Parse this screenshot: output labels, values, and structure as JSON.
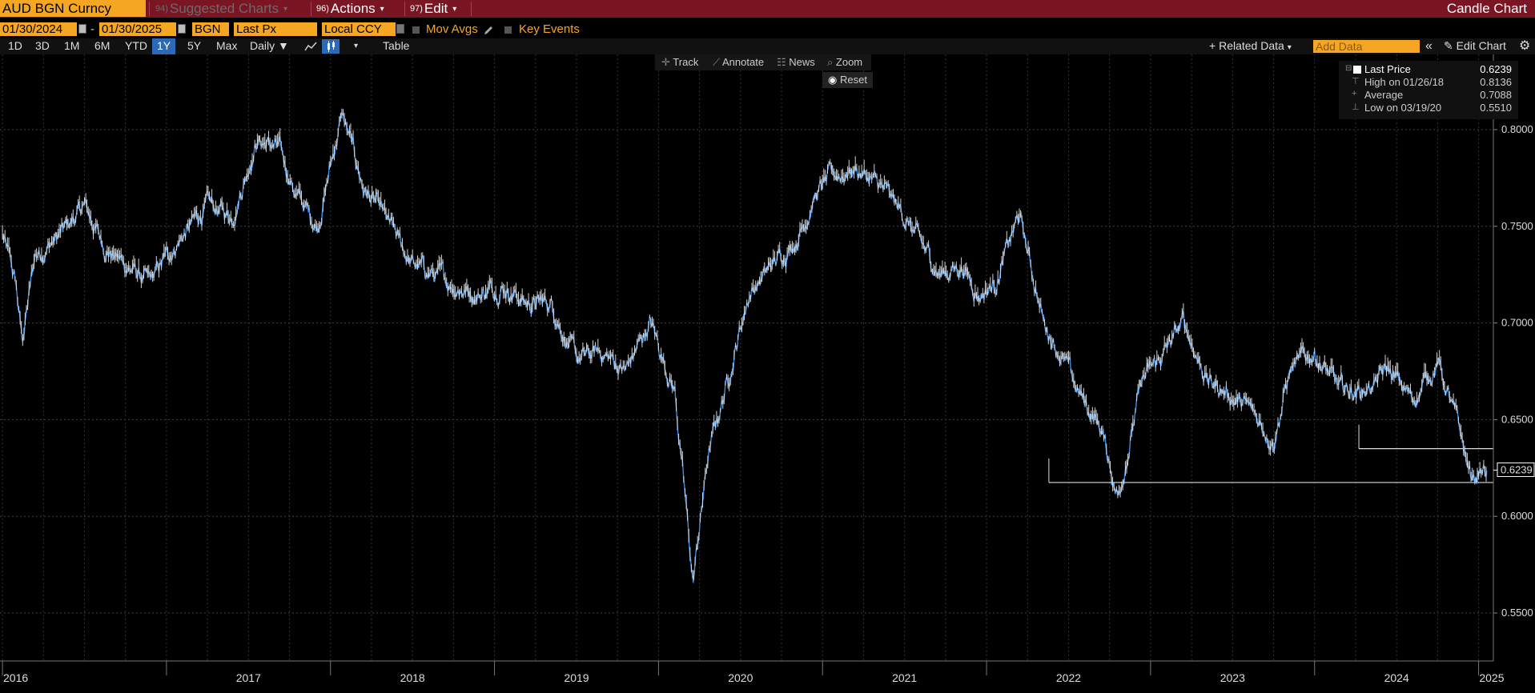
{
  "titlebar": {
    "ticker": "AUD BGN Curncy",
    "suggested_num": "94)",
    "suggested": "Suggested Charts",
    "actions_num": "96)",
    "actions": "Actions",
    "edit_num": "97)",
    "edit": "Edit",
    "chart_type": "Candle Chart"
  },
  "controls": {
    "start_date": "01/30/2024",
    "dash": "-",
    "end_date": "01/30/2025",
    "source": "BGN",
    "field": "Last Px",
    "currency": "Local CCY",
    "mov_avgs": "Mov Avgs",
    "key_events": "Key Events"
  },
  "periods": [
    "1D",
    "3D",
    "1M",
    "6M",
    "YTD",
    "1Y",
    "5Y",
    "Max"
  ],
  "active_period": "1Y",
  "frequency": "Daily",
  "table": "Table",
  "related_data": "Related Data",
  "add_data_placeholder": "Add Data",
  "edit_chart": "Edit Chart",
  "chart_toolbar": {
    "track": "Track",
    "annotate": "Annotate",
    "news": "News",
    "zoom": "Zoom",
    "reset": "Reset"
  },
  "legend": {
    "last_label": "Last Price",
    "last_value": "0.6239",
    "high_label": "High on 01/26/18",
    "high_value": "0.8136",
    "avg_label": "Average",
    "avg_value": "0.7088",
    "low_label": "Low on 03/19/20",
    "low_value": "0.5510"
  },
  "colors": {
    "accent_orange": "#f5a623",
    "title_bar": "#7a1523",
    "series_blue": "#3a8ee6",
    "active_tab": "#2a6ab9"
  },
  "chart_data": {
    "type": "line",
    "ylim": [
      0.545,
      0.82
    ],
    "y_ticks": [
      "0.8000",
      "0.7500",
      "0.7000",
      "0.6500",
      "0.6000",
      "0.5500"
    ],
    "x_tick_labels": [
      "2016",
      "2017",
      "2018",
      "2019",
      "2020",
      "2021",
      "2022",
      "2023",
      "2024",
      "2025"
    ],
    "x": [
      2016.0,
      2016.08,
      2016.12,
      2016.2,
      2016.35,
      2016.5,
      2016.62,
      2016.75,
      2016.9,
      2017.05,
      2017.25,
      2017.4,
      2017.55,
      2017.68,
      2017.8,
      2017.92,
      2018.07,
      2018.2,
      2018.32,
      2018.5,
      2018.62,
      2018.75,
      2018.9,
      2019.05,
      2019.2,
      2019.35,
      2019.5,
      2019.65,
      2019.8,
      2019.95,
      2020.1,
      2020.21,
      2020.3,
      2020.42,
      2020.55,
      2020.7,
      2020.85,
      2020.95,
      2021.05,
      2021.2,
      2021.35,
      2021.5,
      2021.6,
      2021.72,
      2021.85,
      2021.95,
      2022.05,
      2022.2,
      2022.35,
      2022.45,
      2022.55,
      2022.7,
      2022.8,
      2022.95,
      2023.05,
      2023.2,
      2023.35,
      2023.45,
      2023.6,
      2023.75,
      2023.85,
      2024.0,
      2024.15,
      2024.3,
      2024.45,
      2024.6,
      2024.75,
      2024.88,
      2024.95,
      2025.05
    ],
    "values": [
      0.745,
      0.72,
      0.69,
      0.735,
      0.745,
      0.76,
      0.74,
      0.73,
      0.72,
      0.74,
      0.76,
      0.755,
      0.795,
      0.79,
      0.765,
      0.75,
      0.808,
      0.77,
      0.755,
      0.73,
      0.725,
      0.72,
      0.715,
      0.72,
      0.71,
      0.71,
      0.68,
      0.685,
      0.675,
      0.7,
      0.665,
      0.565,
      0.63,
      0.67,
      0.715,
      0.73,
      0.745,
      0.765,
      0.775,
      0.78,
      0.77,
      0.755,
      0.74,
      0.725,
      0.73,
      0.715,
      0.72,
      0.755,
      0.7,
      0.685,
      0.665,
      0.645,
      0.61,
      0.67,
      0.68,
      0.7,
      0.67,
      0.665,
      0.655,
      0.64,
      0.675,
      0.685,
      0.665,
      0.665,
      0.675,
      0.66,
      0.68,
      0.645,
      0.62,
      0.6239
    ],
    "last_price": 0.6239,
    "reference_lines": [
      0.6175,
      0.635
    ],
    "grid": true
  }
}
